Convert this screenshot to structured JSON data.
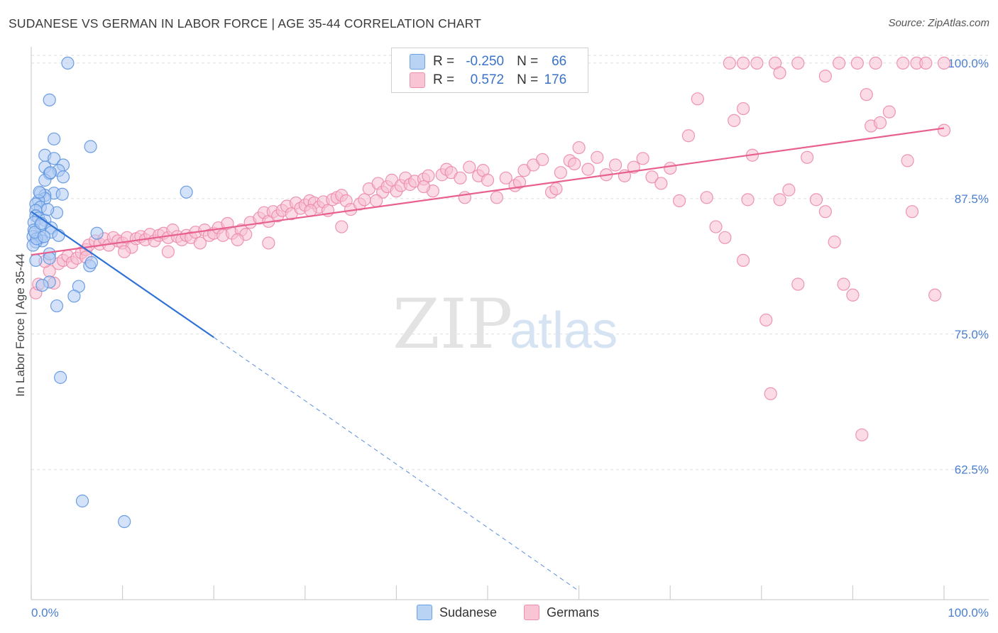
{
  "header": {
    "title": "SUDANESE VS GERMAN IN LABOR FORCE | AGE 35-44 CORRELATION CHART",
    "source": "Source: ZipAtlas.com"
  },
  "legend": {
    "rows": [
      {
        "r_label": "R = ",
        "r_value": "-0.250",
        "n_label": "N = ",
        "n_value": "66",
        "color": "blue"
      },
      {
        "r_label": "R = ",
        "r_value": "0.572",
        "n_label": "N = ",
        "n_value": "176",
        "color": "pink"
      }
    ],
    "bottom": [
      "Sudanese",
      "Germans"
    ]
  },
  "colors": {
    "blue_fill": "#aecbf2",
    "blue_stroke": "#5d95e0",
    "blue_line": "#2f72d6",
    "pink_fill": "#f8c0d1",
    "pink_stroke": "#ec8aa9",
    "pink_line": "#e8608f",
    "axis_text": "#4a7fd0",
    "grid": "#dedede"
  },
  "chart_data": {
    "type": "scatter",
    "title": "SUDANESE VS GERMAN IN LABOR FORCE | AGE 35-44 CORRELATION CHART",
    "xlabel": "",
    "ylabel": "In Labor Force | Age 35-44",
    "xlim": [
      0,
      100
    ],
    "ylim": [
      50.5,
      101.5
    ],
    "x_tick_labels": [
      "0.0%",
      "100.0%"
    ],
    "y_ticks": [
      62.5,
      75.0,
      87.5,
      100.0
    ],
    "y_tick_labels": [
      "62.5%",
      "75.0%",
      "87.5%",
      "100.0%"
    ],
    "grid": true,
    "legend_position": "top-center",
    "watermark": {
      "zip": "ZIP",
      "atlas": "atlas"
    },
    "series": [
      {
        "name": "Sudanese",
        "color": "blue",
        "trend": {
          "x": [
            0,
            20
          ],
          "y": [
            86.3,
            74.7
          ],
          "dashed_extension_to": [
            60,
            51.3
          ]
        },
        "points": [
          [
            4,
            100
          ],
          [
            2,
            96.6
          ],
          [
            2.5,
            93
          ],
          [
            6.5,
            92.3
          ],
          [
            1.5,
            91.5
          ],
          [
            2.5,
            91.2
          ],
          [
            3.5,
            90.6
          ],
          [
            1.5,
            90.4
          ],
          [
            3,
            90.1
          ],
          [
            2,
            89.8
          ],
          [
            3.5,
            89.5
          ],
          [
            1.5,
            89.2
          ],
          [
            17,
            88.1
          ],
          [
            1,
            88
          ],
          [
            2.5,
            88
          ],
          [
            1.5,
            87.8
          ],
          [
            1.5,
            87.5
          ],
          [
            0.8,
            87.3
          ],
          [
            0.5,
            87
          ],
          [
            1,
            86.7
          ],
          [
            0.5,
            86.4
          ],
          [
            2.8,
            86.2
          ],
          [
            0.5,
            85.9
          ],
          [
            0.8,
            85.7
          ],
          [
            1.5,
            85.5
          ],
          [
            0.3,
            85.3
          ],
          [
            1,
            85
          ],
          [
            2.2,
            84.8
          ],
          [
            0.3,
            84.6
          ],
          [
            2.2,
            84.4
          ],
          [
            3,
            84.1
          ],
          [
            7.2,
            84.3
          ],
          [
            0.2,
            84
          ],
          [
            1,
            83.9
          ],
          [
            1.2,
            83.6
          ],
          [
            0.5,
            83.5
          ],
          [
            0.2,
            83.2
          ],
          [
            2,
            82.4
          ],
          [
            2,
            82
          ],
          [
            0.5,
            81.8
          ],
          [
            6.4,
            81.3
          ],
          [
            6.6,
            81.6
          ],
          [
            2,
            79.8
          ],
          [
            5.2,
            79.4
          ],
          [
            1.2,
            79.5
          ],
          [
            4.7,
            78.5
          ],
          [
            2.8,
            77.6
          ],
          [
            3.2,
            71
          ],
          [
            5.6,
            59.6
          ],
          [
            10.2,
            57.7
          ],
          [
            0.6,
            83.8
          ],
          [
            1.8,
            86.5
          ],
          [
            0.9,
            88.1
          ],
          [
            2.1,
            89.9
          ],
          [
            0.4,
            84.4
          ],
          [
            1.4,
            84
          ],
          [
            3.4,
            87.9
          ],
          [
            1.1,
            85.2
          ]
        ]
      },
      {
        "name": "Germans",
        "color": "pink",
        "trend": {
          "x": [
            0,
            100
          ],
          "y": [
            82.3,
            94.0
          ]
        },
        "points": [
          [
            0.5,
            78.8
          ],
          [
            0.8,
            79.6
          ],
          [
            2,
            80.8
          ],
          [
            2.5,
            79.7
          ],
          [
            3,
            81.5
          ],
          [
            3.5,
            81.8
          ],
          [
            4,
            82.2
          ],
          [
            4.5,
            81.6
          ],
          [
            5,
            82
          ],
          [
            5.5,
            82.5
          ],
          [
            6,
            82.8
          ],
          [
            6.3,
            83.2
          ],
          [
            7,
            83.6
          ],
          [
            7.5,
            83.3
          ],
          [
            8,
            83.8
          ],
          [
            8.5,
            83.2
          ],
          [
            9,
            83.9
          ],
          [
            9.5,
            83.6
          ],
          [
            10,
            83.4
          ],
          [
            10.5,
            83.9
          ],
          [
            11,
            83
          ],
          [
            11.5,
            83.8
          ],
          [
            12,
            84
          ],
          [
            12.5,
            83.7
          ],
          [
            13,
            84.2
          ],
          [
            13.5,
            83.6
          ],
          [
            14,
            84.1
          ],
          [
            14.5,
            84.3
          ],
          [
            15,
            83.9
          ],
          [
            15.5,
            84.6
          ],
          [
            16,
            84
          ],
          [
            16.5,
            83.7
          ],
          [
            17,
            84.1
          ],
          [
            17.5,
            83.9
          ],
          [
            18,
            84.4
          ],
          [
            18.5,
            83.4
          ],
          [
            19,
            84.6
          ],
          [
            19.5,
            84.1
          ],
          [
            20,
            84.3
          ],
          [
            20.5,
            84.8
          ],
          [
            21,
            84.1
          ],
          [
            21.5,
            85.2
          ],
          [
            22,
            84.3
          ],
          [
            23,
            84.6
          ],
          [
            23.5,
            84.2
          ],
          [
            24,
            85.3
          ],
          [
            25,
            85.7
          ],
          [
            25.5,
            86.2
          ],
          [
            26,
            85.4
          ],
          [
            26.5,
            86.3
          ],
          [
            27,
            85.9
          ],
          [
            27.5,
            86.4
          ],
          [
            28,
            86.8
          ],
          [
            28.5,
            86.1
          ],
          [
            29,
            87.1
          ],
          [
            29.5,
            86.6
          ],
          [
            30,
            86.9
          ],
          [
            30.5,
            87.3
          ],
          [
            31,
            87.1
          ],
          [
            31.5,
            86.7
          ],
          [
            32,
            87.2
          ],
          [
            32.5,
            86.4
          ],
          [
            33,
            87.4
          ],
          [
            33.5,
            87.6
          ],
          [
            34,
            87.8
          ],
          [
            34.5,
            87.3
          ],
          [
            35,
            86.5
          ],
          [
            36,
            87
          ],
          [
            36.5,
            87.4
          ],
          [
            37,
            88.4
          ],
          [
            38,
            88.9
          ],
          [
            38.5,
            88.1
          ],
          [
            39,
            88.6
          ],
          [
            39.5,
            89.2
          ],
          [
            40,
            88.2
          ],
          [
            40.5,
            88.7
          ],
          [
            41,
            89.4
          ],
          [
            41.5,
            88.8
          ],
          [
            42,
            89.1
          ],
          [
            43,
            89.3
          ],
          [
            43.5,
            89.6
          ],
          [
            44,
            88.2
          ],
          [
            45,
            89.7
          ],
          [
            45.5,
            90.2
          ],
          [
            46,
            89.9
          ],
          [
            47,
            89.4
          ],
          [
            47.5,
            87.6
          ],
          [
            48,
            90.4
          ],
          [
            49,
            89.6
          ],
          [
            49.5,
            90.1
          ],
          [
            50,
            89.2
          ],
          [
            51,
            87.6
          ],
          [
            52,
            89.4
          ],
          [
            53,
            88.7
          ],
          [
            53.5,
            89
          ],
          [
            54,
            90.1
          ],
          [
            55,
            90.6
          ],
          [
            56,
            91.1
          ],
          [
            57,
            88.1
          ],
          [
            57.5,
            88.4
          ],
          [
            58,
            89.9
          ],
          [
            59,
            91
          ],
          [
            59.5,
            90.7
          ],
          [
            60,
            92.2
          ],
          [
            61,
            90.2
          ],
          [
            62,
            91.3
          ],
          [
            63,
            89.7
          ],
          [
            64,
            90.6
          ],
          [
            65,
            89.6
          ],
          [
            66,
            90.4
          ],
          [
            67,
            91.2
          ],
          [
            68,
            89.5
          ],
          [
            69,
            88.9
          ],
          [
            70,
            90.3
          ],
          [
            71,
            87.3
          ],
          [
            72,
            93.3
          ],
          [
            73,
            96.7
          ],
          [
            74,
            87.6
          ],
          [
            75,
            84.9
          ],
          [
            76,
            83.9
          ],
          [
            77,
            94.7
          ],
          [
            78,
            81.8
          ],
          [
            78.5,
            87.4
          ],
          [
            78,
            95.8
          ],
          [
            79,
            91.5
          ],
          [
            80.5,
            76.3
          ],
          [
            81,
            69.5
          ],
          [
            82,
            87.4
          ],
          [
            83,
            88.3
          ],
          [
            84,
            79.6
          ],
          [
            85,
            91.3
          ],
          [
            86,
            87.4
          ],
          [
            87,
            86.3
          ],
          [
            88,
            83.5
          ],
          [
            89,
            79.6
          ],
          [
            90,
            78.6
          ],
          [
            91,
            65.7
          ],
          [
            92,
            94.2
          ],
          [
            94,
            95.5
          ],
          [
            96,
            91
          ],
          [
            99,
            78.6
          ],
          [
            100,
            93.8
          ],
          [
            76.5,
            100
          ],
          [
            78,
            100
          ],
          [
            79.5,
            100
          ],
          [
            81.5,
            100
          ],
          [
            84,
            100
          ],
          [
            88.5,
            100
          ],
          [
            90.5,
            100
          ],
          [
            92.5,
            100
          ],
          [
            95.5,
            100
          ],
          [
            97,
            100
          ],
          [
            98,
            100
          ],
          [
            100,
            100
          ],
          [
            82,
            99.1
          ],
          [
            87,
            98.8
          ],
          [
            91.5,
            97.1
          ],
          [
            93,
            94.5
          ],
          [
            96.5,
            86.3
          ],
          [
            34,
            84.9
          ],
          [
            26,
            83.4
          ],
          [
            15,
            82.6
          ],
          [
            10.2,
            82.6
          ],
          [
            6,
            82.1
          ],
          [
            1.5,
            81.7
          ],
          [
            22.6,
            83.7
          ],
          [
            37.8,
            87.3
          ],
          [
            43,
            88.6
          ],
          [
            30.6,
            86.4
          ]
        ]
      }
    ]
  }
}
